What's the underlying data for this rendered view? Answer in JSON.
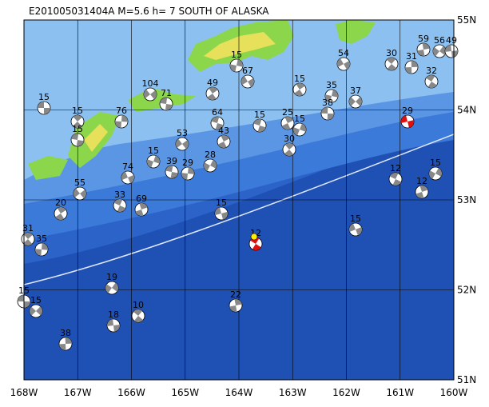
{
  "header": {
    "title": "E201005031404A  M=5.6  h=   7 SOUTH OF ALASKA"
  },
  "lon_labels": [
    "168W",
    "167W",
    "166W",
    "165W",
    "164W",
    "163W",
    "162W",
    "161W",
    "160W"
  ],
  "lat_labels": [
    "55N",
    "54N",
    "53N",
    "52N",
    "51N"
  ],
  "event_labels": [
    "15",
    "15",
    "76",
    "104",
    "71",
    "49",
    "15",
    "67",
    "64",
    "43",
    "15",
    "74",
    "33",
    "69",
    "28",
    "15",
    "12",
    "22",
    "19",
    "18",
    "10",
    "38",
    "15",
    "15",
    "31",
    "35",
    "55",
    "15",
    "15",
    "35",
    "54",
    "15",
    "25",
    "15",
    "15",
    "12",
    "12",
    "15",
    "29",
    "32",
    "59",
    "56",
    "49",
    "30",
    "31",
    "37",
    "38",
    "30",
    "29",
    "53",
    "39",
    "20"
  ]
}
